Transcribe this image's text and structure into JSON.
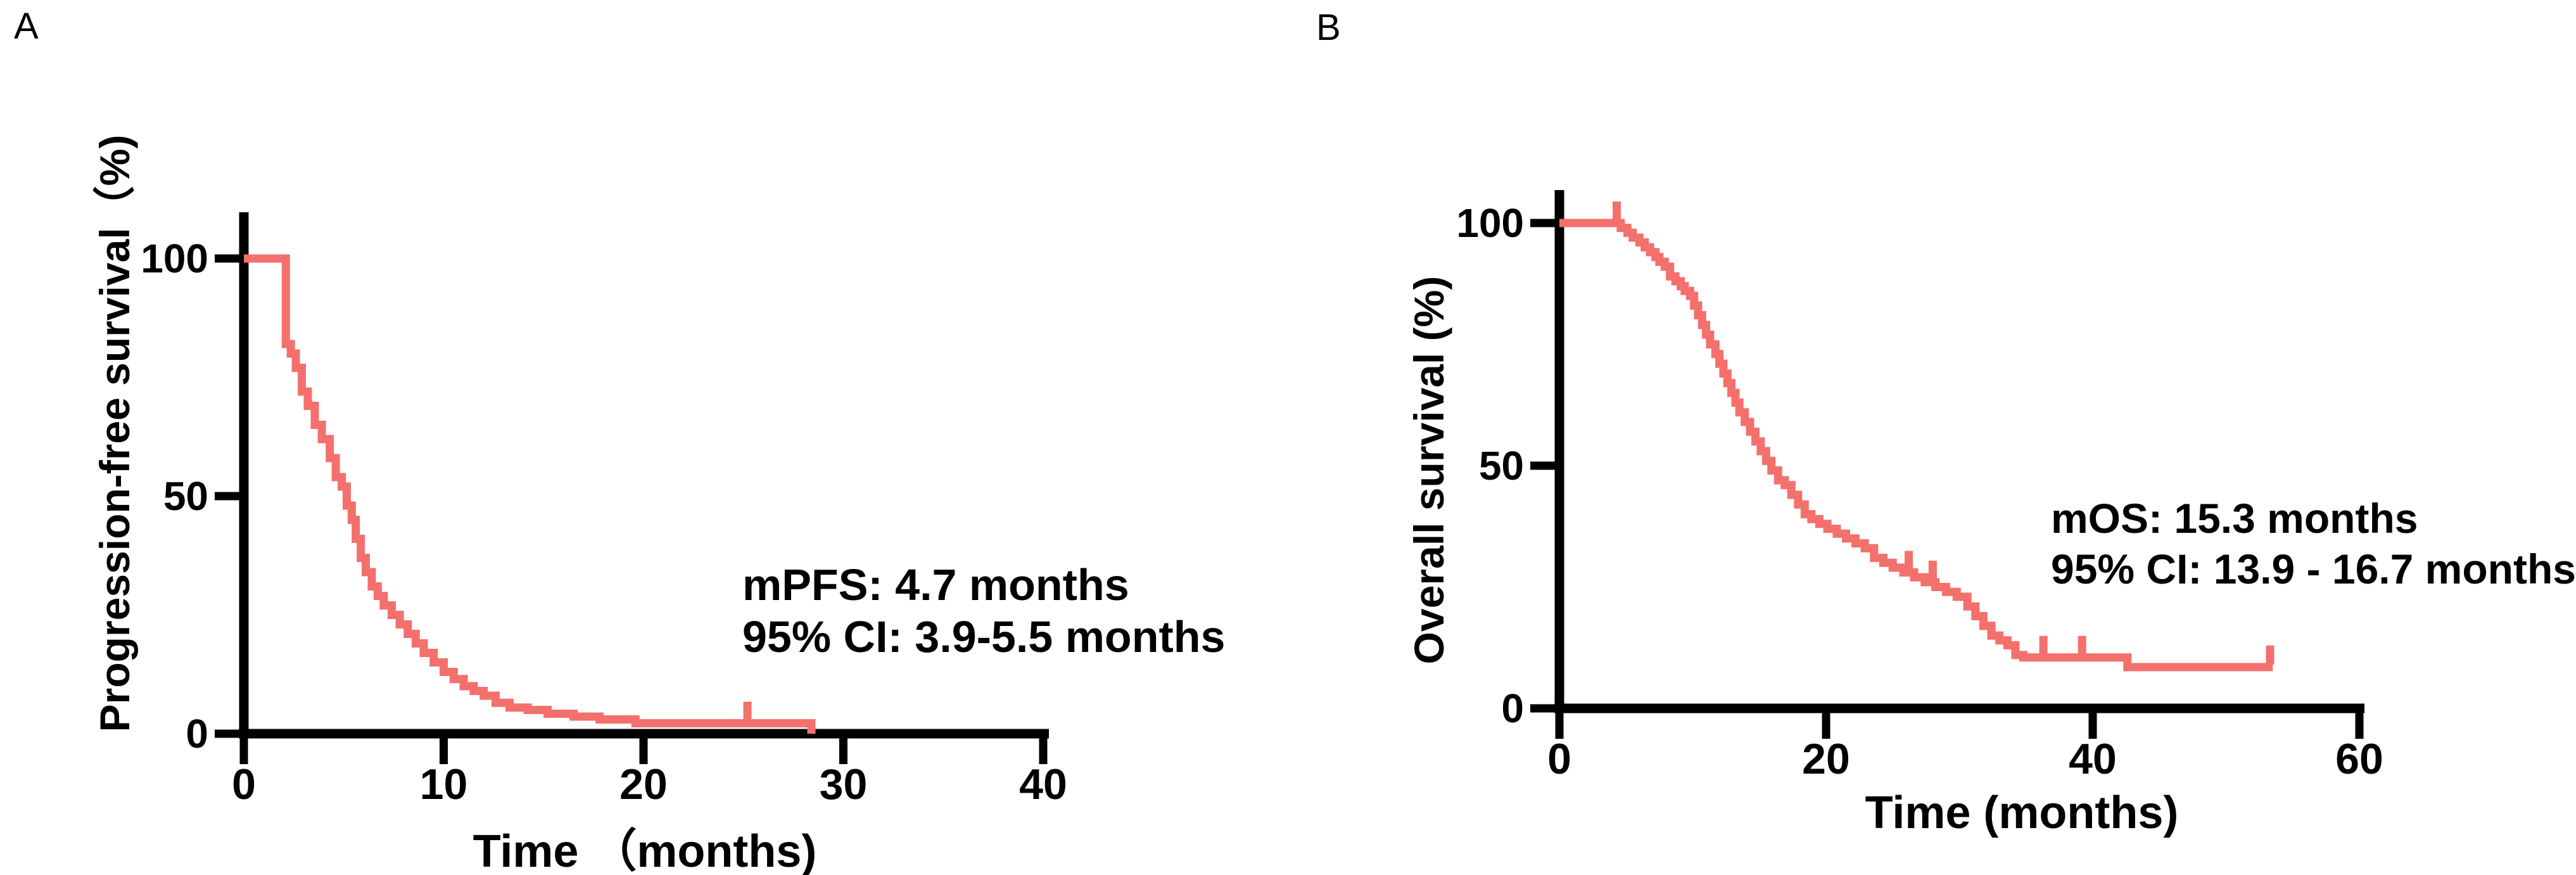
{
  "figure": {
    "background_color": "#ffffff",
    "curve_color": "#f4706c",
    "axis_color": "#000000",
    "text_color": "#000000"
  },
  "panels": [
    {
      "letter": "A",
      "y_axis_title": "Progression-free survival（%)",
      "x_axis_title": "Time （months)",
      "annotation_line1": "mPFS: 4.7 months",
      "annotation_line2": "95% CI: 3.9-5.5 months"
    },
    {
      "letter": "B",
      "y_axis_title": "Overall survival (%)",
      "x_axis_title": "Time (months)",
      "annotation_line1": "mOS: 15.3 months",
      "annotation_line2": "95% CI: 13.9 - 16.7 months"
    }
  ],
  "chart_data": [
    {
      "type": "line",
      "subtype": "kaplan_meier_step",
      "title": "Progression-free survival",
      "xlabel": "Time （months)",
      "ylabel": "Progression-free survival（%)",
      "xlim": [
        0,
        40
      ],
      "ylim": [
        0,
        100
      ],
      "x_ticks": [
        0,
        10,
        20,
        30,
        40
      ],
      "y_ticks": [
        100,
        50,
        0
      ],
      "grid": false,
      "legend": "none",
      "median_pfs_months": 4.7,
      "ci_95_months": [
        3.9,
        5.5
      ],
      "series": [
        {
          "name": "Progression-free survival",
          "color": "#f4706c",
          "step_points": [
            [
              0,
              100
            ],
            [
              2.1,
              82
            ],
            [
              2.35,
              80
            ],
            [
              2.6,
              77
            ],
            [
              2.9,
              72
            ],
            [
              3.2,
              69
            ],
            [
              3.55,
              65
            ],
            [
              3.9,
              62
            ],
            [
              4.3,
              58
            ],
            [
              4.6,
              54
            ],
            [
              4.9,
              52
            ],
            [
              5.15,
              48
            ],
            [
              5.4,
              45
            ],
            [
              5.6,
              41
            ],
            [
              5.85,
              37
            ],
            [
              6.1,
              34
            ],
            [
              6.4,
              31
            ],
            [
              6.7,
              29
            ],
            [
              7.0,
              27
            ],
            [
              7.4,
              25
            ],
            [
              7.8,
              23
            ],
            [
              8.2,
              21
            ],
            [
              8.6,
              19
            ],
            [
              9.0,
              17
            ],
            [
              9.5,
              15
            ],
            [
              10.0,
              13
            ],
            [
              10.5,
              11.5
            ],
            [
              11.0,
              10
            ],
            [
              11.5,
              9
            ],
            [
              12.0,
              8
            ],
            [
              12.6,
              6.5
            ],
            [
              13.3,
              5.5
            ],
            [
              14.2,
              5
            ],
            [
              15.2,
              4.2
            ],
            [
              16.5,
              3.6
            ],
            [
              17.8,
              3.0
            ],
            [
              19.6,
              2.2
            ],
            [
              28.4,
              0
            ]
          ],
          "censor_marks_months": [
            25.2
          ],
          "end_of_curve": "event_at_zero"
        }
      ]
    },
    {
      "type": "line",
      "subtype": "kaplan_meier_step",
      "title": "Overall survival",
      "xlabel": "Time (months)",
      "ylabel": "Overall survival (%)",
      "xlim": [
        0,
        60
      ],
      "ylim": [
        0,
        100
      ],
      "x_ticks": [
        0,
        20,
        40,
        60
      ],
      "y_ticks": [
        100,
        50,
        0
      ],
      "grid": false,
      "legend": "none",
      "median_os_months": 15.3,
      "ci_95_months": [
        13.9,
        16.7
      ],
      "series": [
        {
          "name": "Overall survival",
          "color": "#f4706c",
          "step_points": [
            [
              0,
              100
            ],
            [
              4.6,
              99
            ],
            [
              5.1,
              98
            ],
            [
              5.5,
              97
            ],
            [
              6.0,
              96
            ],
            [
              6.4,
              95
            ],
            [
              6.8,
              94
            ],
            [
              7.2,
              93
            ],
            [
              7.5,
              92
            ],
            [
              7.9,
              91
            ],
            [
              8.3,
              89
            ],
            [
              8.7,
              88
            ],
            [
              9.1,
              87
            ],
            [
              9.4,
              86
            ],
            [
              9.8,
              85
            ],
            [
              10.1,
              83
            ],
            [
              10.4,
              81
            ],
            [
              10.7,
              79
            ],
            [
              11.0,
              77
            ],
            [
              11.3,
              75
            ],
            [
              11.7,
              73
            ],
            [
              12.0,
              71
            ],
            [
              12.3,
              69
            ],
            [
              12.6,
              67
            ],
            [
              12.9,
              65
            ],
            [
              13.2,
              63
            ],
            [
              13.5,
              61
            ],
            [
              13.9,
              59
            ],
            [
              14.3,
              57
            ],
            [
              14.7,
              55
            ],
            [
              15.1,
              53
            ],
            [
              15.5,
              51
            ],
            [
              15.9,
              49
            ],
            [
              16.4,
              47
            ],
            [
              16.9,
              46
            ],
            [
              17.4,
              44
            ],
            [
              17.9,
              42
            ],
            [
              18.4,
              40
            ],
            [
              18.9,
              39
            ],
            [
              19.5,
              38
            ],
            [
              20.1,
              37
            ],
            [
              20.8,
              36
            ],
            [
              21.5,
              35
            ],
            [
              22.2,
              34
            ],
            [
              22.9,
              33
            ],
            [
              23.6,
              31
            ],
            [
              24.3,
              30
            ],
            [
              25.0,
              29
            ],
            [
              25.8,
              28
            ],
            [
              26.6,
              27
            ],
            [
              27.4,
              26
            ],
            [
              28.2,
              25
            ],
            [
              29.0,
              24
            ],
            [
              29.8,
              23
            ],
            [
              30.6,
              21
            ],
            [
              31.2,
              19
            ],
            [
              31.8,
              17
            ],
            [
              32.4,
              15
            ],
            [
              33.0,
              14
            ],
            [
              33.6,
              13
            ],
            [
              34.2,
              11
            ],
            [
              34.8,
              10.5
            ],
            [
              42.6,
              8.5
            ],
            [
              53.5,
              8.5
            ]
          ],
          "censor_marks_months": [
            4.3,
            26.2,
            28.0,
            36.3,
            39.2,
            53.3
          ],
          "end_of_curve": "censored"
        }
      ]
    }
  ]
}
